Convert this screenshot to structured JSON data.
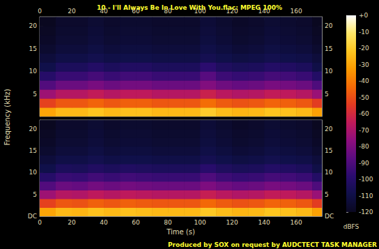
{
  "chart_data": [
    {
      "type": "heatmap",
      "title": "10 - I'll Always Be In Love With You.flac: MPEG 100%",
      "xlim": [
        0,
        176
      ],
      "xticks": [
        0,
        20,
        40,
        60,
        80,
        100,
        120,
        140,
        160
      ],
      "ylim": [
        0,
        22.05
      ],
      "yticks": [
        5,
        10,
        15,
        20
      ],
      "x_bins": [
        0,
        10,
        20,
        30,
        40,
        50,
        60,
        70,
        80,
        90,
        100,
        110,
        120,
        130,
        140,
        150,
        160,
        170,
        176
      ],
      "y_bins": [
        0,
        2,
        4,
        6,
        8,
        10,
        12,
        14,
        16,
        18,
        20,
        22
      ],
      "cells": [
        [
          -30,
          -25,
          -25,
          -22,
          -25,
          -23,
          -23,
          -25,
          -25,
          -25,
          -20,
          -24,
          -26,
          -25,
          -22,
          -23,
          -25,
          -31
        ],
        [
          -53,
          -48,
          -48,
          -45,
          -48,
          -46,
          -46,
          -48,
          -48,
          -48,
          -43,
          -47,
          -49,
          -48,
          -45,
          -46,
          -48,
          -54
        ],
        [
          -73,
          -68,
          -68,
          -65,
          -68,
          -66,
          -66,
          -68,
          -68,
          -68,
          -63,
          -67,
          -69,
          -68,
          -65,
          -66,
          -68,
          -74
        ],
        [
          -89,
          -84,
          -84,
          -81,
          -84,
          -82,
          -82,
          -84,
          -84,
          -84,
          -79,
          -83,
          -85,
          -84,
          -81,
          -82,
          -84,
          -90
        ],
        [
          -100,
          -95,
          -95,
          -92,
          -95,
          -93,
          -93,
          -95,
          -95,
          -95,
          -88,
          -94,
          -96,
          -95,
          -92,
          -93,
          -95,
          -101
        ],
        [
          -109,
          -104,
          -104,
          -101,
          -104,
          -102,
          -102,
          -104,
          -104,
          -104,
          -98,
          -103,
          -105,
          -104,
          -101,
          -102,
          -104,
          -110
        ],
        [
          -113,
          -110,
          -110,
          -108,
          -110,
          -109,
          -109,
          -110,
          -110,
          -110,
          -107,
          -109,
          -111,
          -110,
          -108,
          -109,
          -110,
          -113
        ],
        [
          -116,
          -113,
          -113,
          -111,
          -113,
          -112,
          -112,
          -113,
          -113,
          -113,
          -110,
          -112,
          -114,
          -113,
          -111,
          -112,
          -113,
          -116
        ],
        [
          -118,
          -115,
          -115,
          -113,
          -115,
          -114,
          -114,
          -115,
          -115,
          -115,
          -112,
          -114,
          -116,
          -115,
          -113,
          -114,
          -115,
          -118
        ],
        [
          -119,
          -116,
          -116,
          -114,
          -116,
          -115,
          -115,
          -116,
          -116,
          -116,
          -113,
          -115,
          -117,
          -116,
          -114,
          -115,
          -116,
          -119
        ],
        [
          -120,
          -117,
          -117,
          -115,
          -117,
          -116,
          -116,
          -117,
          -117,
          -117,
          -114,
          -116,
          -118,
          -117,
          -115,
          -116,
          -117,
          -120
        ]
      ]
    },
    {
      "type": "heatmap",
      "x_label": "Time (s)",
      "y_label": "Frequency (kHz)",
      "annotation": "Produced by SOX on request by AUDCTECT TASK MANAGER",
      "xlim": [
        0,
        176
      ],
      "xticks": [
        0,
        20,
        40,
        60,
        80,
        100,
        120,
        140,
        160
      ],
      "ylim": [
        0,
        22.05
      ],
      "yticks": [
        {
          "value": 0,
          "label": "DC"
        },
        5,
        10,
        15,
        20
      ],
      "x_bins": [
        0,
        10,
        20,
        30,
        40,
        50,
        60,
        70,
        80,
        90,
        100,
        110,
        120,
        130,
        140,
        150,
        160,
        170,
        176
      ],
      "y_bins": [
        0,
        2,
        4,
        6,
        8,
        10,
        12,
        14,
        16,
        18,
        20,
        22
      ],
      "cells": [
        [
          -30,
          -25,
          -26,
          -23,
          -25,
          -23,
          -24,
          -25,
          -25,
          -25,
          -21,
          -24,
          -26,
          -25,
          -22,
          -23,
          -25,
          -31
        ],
        [
          -53,
          -48,
          -49,
          -46,
          -48,
          -46,
          -47,
          -48,
          -48,
          -48,
          -44,
          -47,
          -49,
          -48,
          -45,
          -46,
          -48,
          -54
        ],
        [
          -73,
          -68,
          -69,
          -66,
          -68,
          -66,
          -67,
          -68,
          -68,
          -68,
          -64,
          -67,
          -69,
          -68,
          -65,
          -66,
          -68,
          -74
        ],
        [
          -89,
          -84,
          -85,
          -82,
          -84,
          -82,
          -83,
          -84,
          -84,
          -84,
          -80,
          -83,
          -85,
          -84,
          -81,
          -82,
          -84,
          -90
        ],
        [
          -100,
          -95,
          -96,
          -93,
          -95,
          -93,
          -94,
          -95,
          -95,
          -95,
          -90,
          -94,
          -96,
          -95,
          -92,
          -93,
          -95,
          -101
        ],
        [
          -109,
          -104,
          -105,
          -102,
          -104,
          -102,
          -103,
          -104,
          -104,
          -104,
          -99,
          -103,
          -105,
          -104,
          -101,
          -102,
          -104,
          -110
        ],
        [
          -113,
          -110,
          -110,
          -108,
          -110,
          -109,
          -109,
          -110,
          -110,
          -110,
          -107,
          -109,
          -111,
          -110,
          -108,
          -109,
          -110,
          -113
        ],
        [
          -116,
          -113,
          -113,
          -111,
          -113,
          -112,
          -112,
          -113,
          -113,
          -113,
          -110,
          -112,
          -114,
          -113,
          -111,
          -112,
          -113,
          -116
        ],
        [
          -118,
          -115,
          -115,
          -113,
          -115,
          -114,
          -114,
          -115,
          -115,
          -115,
          -112,
          -114,
          -116,
          -115,
          -113,
          -114,
          -115,
          -118
        ],
        [
          -119,
          -116,
          -116,
          -114,
          -116,
          -115,
          -115,
          -116,
          -116,
          -116,
          -113,
          -115,
          -117,
          -116,
          -114,
          -115,
          -116,
          -119
        ],
        [
          -120,
          -117,
          -117,
          -115,
          -117,
          -116,
          -116,
          -117,
          -117,
          -117,
          -114,
          -116,
          -118,
          -117,
          -115,
          -116,
          -117,
          -120
        ]
      ],
      "colorbar": {
        "range": [
          -120,
          0
        ],
        "ticks": [
          {
            "value": 0,
            "label": "+0"
          },
          -10,
          -20,
          -30,
          -40,
          -50,
          -60,
          -70,
          -80,
          -90,
          -100,
          -110,
          -120
        ],
        "label": "dBFS"
      }
    }
  ]
}
